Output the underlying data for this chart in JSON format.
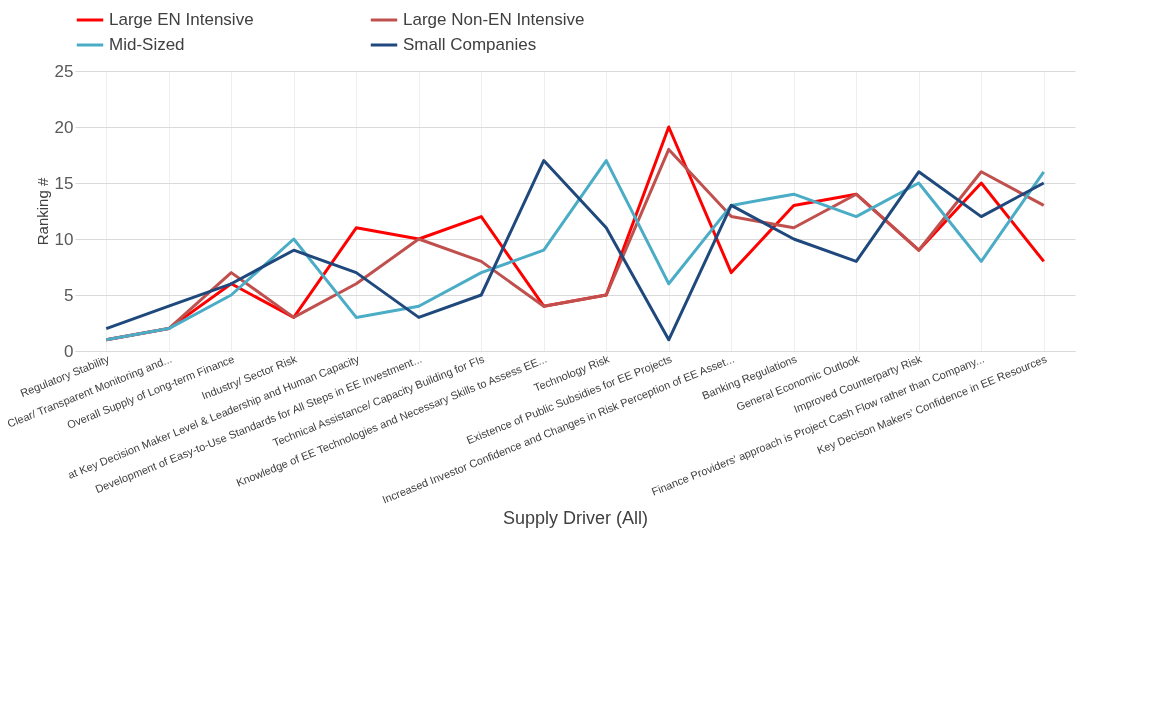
{
  "chart_data": {
    "type": "line",
    "xlabel": "Supply Driver (All)",
    "ylabel": "Ranking #",
    "categories": [
      "Regulatory Stability",
      "Clear/ Transparent Monitoring and...",
      "Overall Supply of Long-term Finance",
      "Industry/ Sector Risk",
      "at Key Decision Maker Level & Leadership and Human Capacity",
      "Development of Easy-to-Use Standards for All Steps in EE Investment...",
      "Technical Assistance/ Capacity Building for FIs",
      "Knowledge of EE Technologies and Necessary Skills to Assess EE...",
      "Technology Risk",
      "Existence of Public Subsidies for EE Projects",
      "Increased Investor Confidence and Changes in Risk Perception of EE Asset...",
      "Banking Regulations",
      "General Economic Outlook",
      "Improved Counterparty Risk",
      "Finance Providers' approach is Project Cash Flow rather than Company...",
      "Key Decison Makers' Confidence in EE Resources"
    ],
    "series": [
      {
        "name": "Large EN Intensive",
        "color": "#ff0000",
        "values": [
          1,
          2,
          6,
          3,
          11,
          10,
          12,
          4,
          5,
          20,
          7,
          13,
          14,
          9,
          15,
          8
        ]
      },
      {
        "name": "Large Non-EN Intensive",
        "color": "#c0504d",
        "values": [
          1,
          2,
          7,
          3,
          6,
          10,
          8,
          4,
          5,
          18,
          12,
          11,
          14,
          9,
          16,
          13
        ]
      },
      {
        "name": "Mid-Sized",
        "color": "#4bacc6",
        "values": [
          1,
          2,
          5,
          10,
          3,
          4,
          7,
          9,
          17,
          6,
          13,
          14,
          12,
          15,
          8,
          16
        ]
      },
      {
        "name": "Small Companies",
        "color": "#1f497d",
        "values": [
          2,
          4,
          6,
          9,
          7,
          3,
          5,
          17,
          11,
          1,
          13,
          10,
          8,
          16,
          12,
          15
        ]
      }
    ],
    "ylim": [
      0,
      25
    ],
    "yticks": [
      0,
      5,
      10,
      15,
      20,
      25
    ],
    "grid": true,
    "legend": "top",
    "line_style": "solid"
  }
}
